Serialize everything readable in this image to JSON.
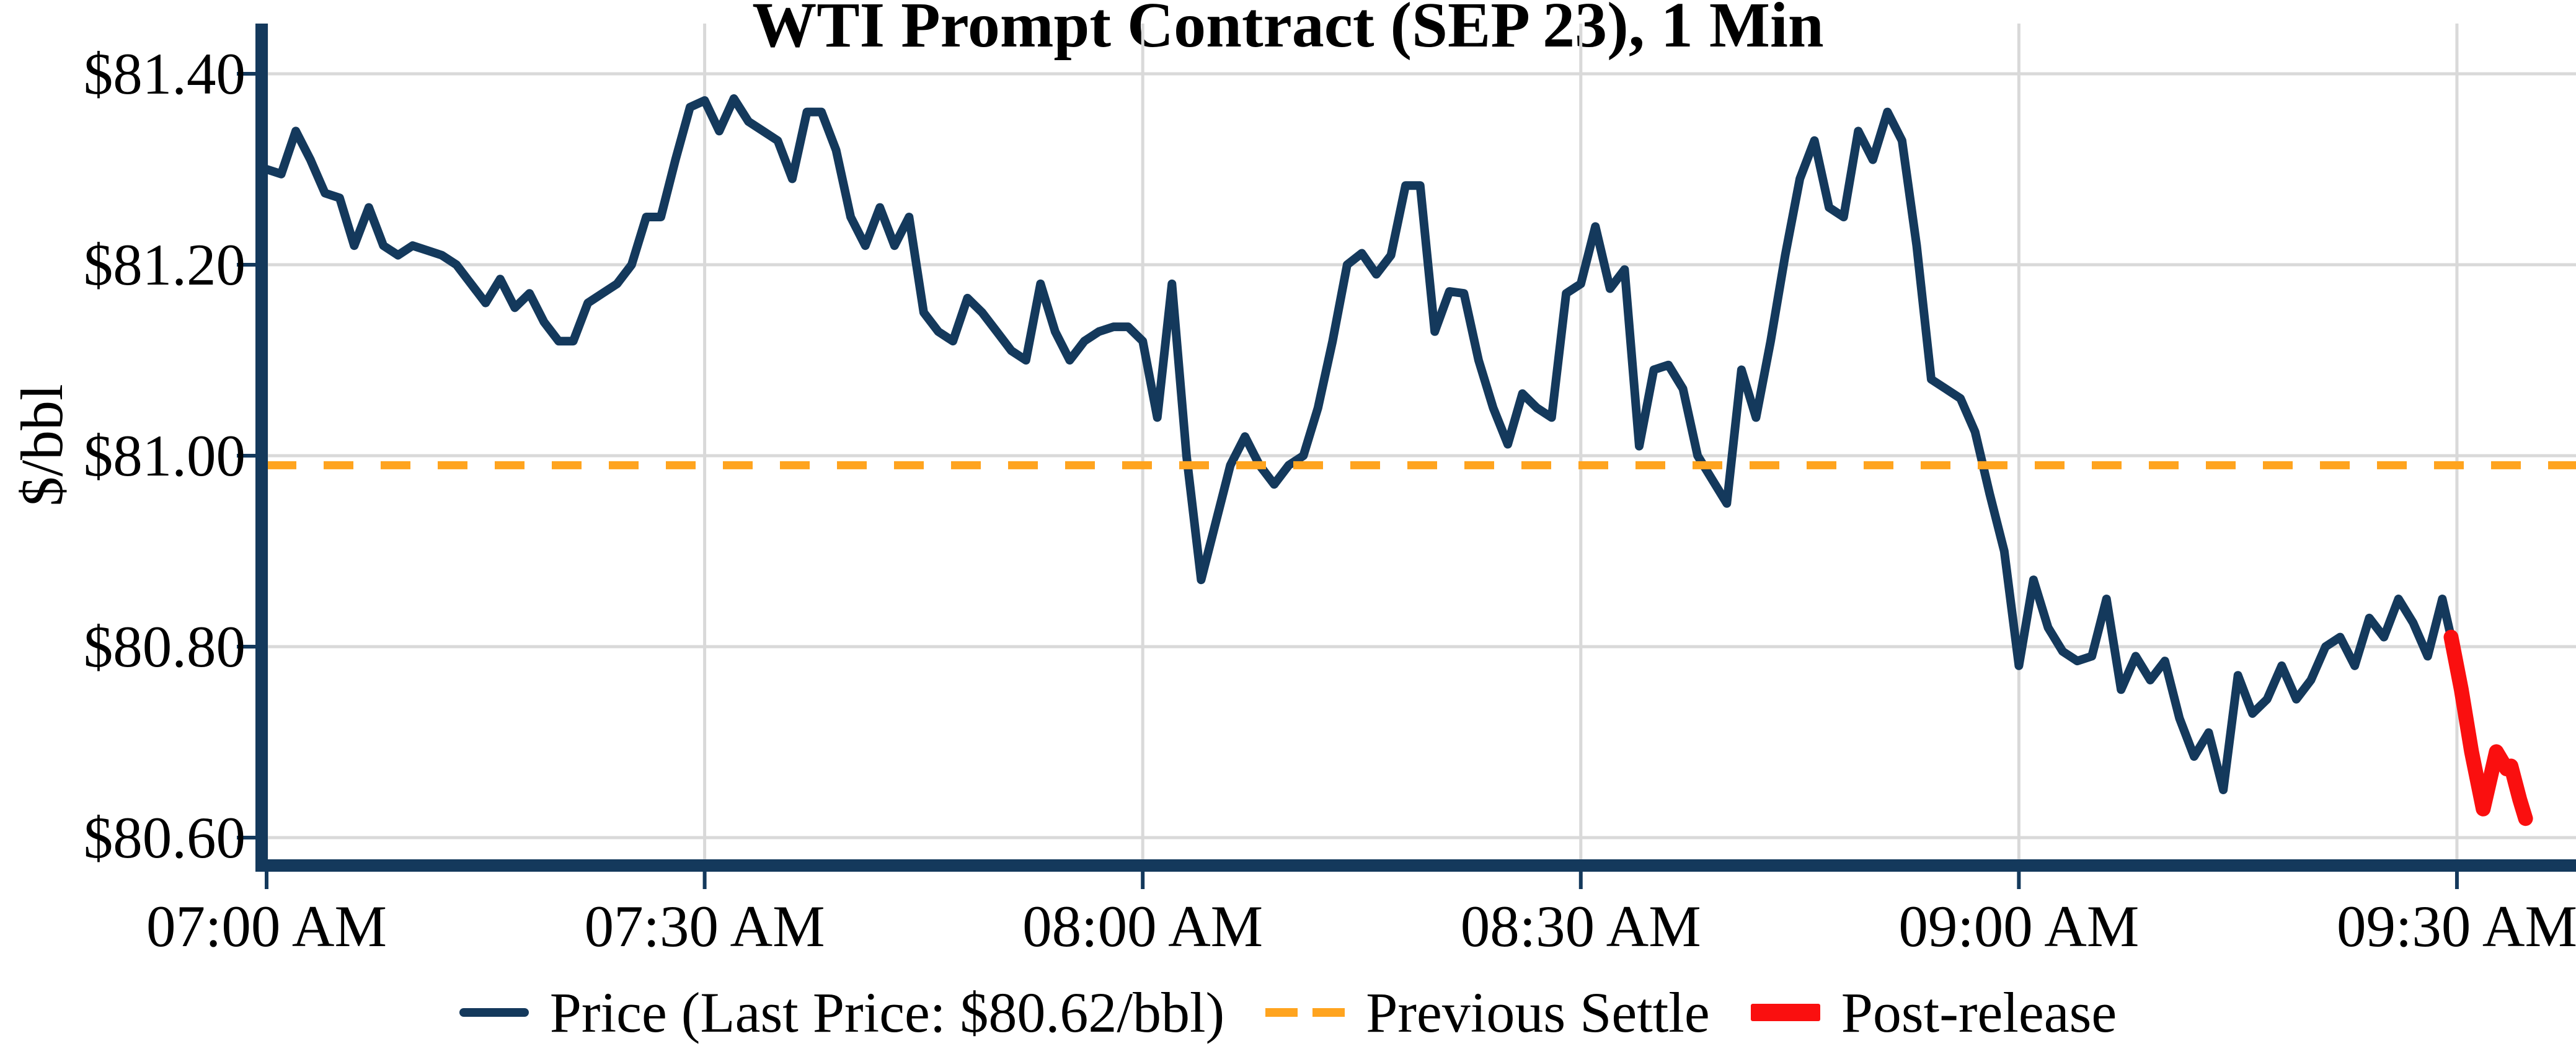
{
  "chart": {
    "title": "WTI Prompt Contract (SEP 23), 1 Min"
  },
  "y_axis": {
    "label": "$/bbl",
    "ticks": [
      {
        "label": "$81.40",
        "value": 81.4
      },
      {
        "label": "$81.20",
        "value": 81.2
      },
      {
        "label": "$81.00",
        "value": 81.0
      },
      {
        "label": "$80.80",
        "value": 80.8
      },
      {
        "label": "$80.60",
        "value": 80.6
      }
    ]
  },
  "x_axis": {
    "ticks": [
      {
        "label": "07:00 AM",
        "minute": 0
      },
      {
        "label": "07:30 AM",
        "minute": 30
      },
      {
        "label": "08:00 AM",
        "minute": 60
      },
      {
        "label": "08:30 AM",
        "minute": 90
      },
      {
        "label": "09:00 AM",
        "minute": 120
      },
      {
        "label": "09:30 AM",
        "minute": 150
      }
    ]
  },
  "legend": {
    "price": "Price (Last Price: $80.62/bbl)",
    "settle": "Previous Settle",
    "post": "Post-release"
  },
  "colors": {
    "price": "#14395C",
    "settle": "#FFA41F",
    "post": "#FA0F0F",
    "grid": "#D9D9D9",
    "axis": "#14395C",
    "text": "#000000"
  },
  "chart_data": {
    "type": "line",
    "title": "WTI Prompt Contract (SEP 23), 1 Min",
    "xlabel": "",
    "ylabel": "$/bbl",
    "x_unit": "minutes after 07:00 AM",
    "xlim": [
      0,
      158
    ],
    "ylim": [
      80.57,
      81.455
    ],
    "grid": true,
    "legend_position": "bottom-center",
    "previous_settle": 80.99,
    "last_price": 80.62,
    "series": [
      {
        "name": "Price",
        "color_key": "price",
        "width": 14,
        "points": [
          [
            0,
            81.3
          ],
          [
            1,
            81.295
          ],
          [
            2,
            81.34
          ],
          [
            3,
            81.31
          ],
          [
            4,
            81.275
          ],
          [
            5,
            81.27
          ],
          [
            6,
            81.22
          ],
          [
            7,
            81.26
          ],
          [
            8,
            81.22
          ],
          [
            9,
            81.21
          ],
          [
            10,
            81.22
          ],
          [
            11,
            81.215
          ],
          [
            12,
            81.21
          ],
          [
            13,
            81.2
          ],
          [
            14,
            81.18
          ],
          [
            15,
            81.16
          ],
          [
            16,
            81.185
          ],
          [
            17,
            81.155
          ],
          [
            18,
            81.17
          ],
          [
            19,
            81.14
          ],
          [
            20,
            81.12
          ],
          [
            21,
            81.12
          ],
          [
            22,
            81.16
          ],
          [
            23,
            81.17
          ],
          [
            24,
            81.18
          ],
          [
            25,
            81.2
          ],
          [
            26,
            81.25
          ],
          [
            27,
            81.25
          ],
          [
            28,
            81.31
          ],
          [
            29,
            81.365
          ],
          [
            30,
            81.372
          ],
          [
            31,
            81.34
          ],
          [
            32,
            81.374
          ],
          [
            33,
            81.35
          ],
          [
            34,
            81.34
          ],
          [
            35,
            81.33
          ],
          [
            36,
            81.29
          ],
          [
            37,
            81.36
          ],
          [
            38,
            81.36
          ],
          [
            39,
            81.32
          ],
          [
            40,
            81.25
          ],
          [
            41,
            81.22
          ],
          [
            42,
            81.26
          ],
          [
            43,
            81.22
          ],
          [
            44,
            81.25
          ],
          [
            45,
            81.15
          ],
          [
            46,
            81.13
          ],
          [
            47,
            81.12
          ],
          [
            48,
            81.165
          ],
          [
            49,
            81.15
          ],
          [
            50,
            81.13
          ],
          [
            51,
            81.11
          ],
          [
            52,
            81.1
          ],
          [
            53,
            81.18
          ],
          [
            54,
            81.13
          ],
          [
            55,
            81.1
          ],
          [
            56,
            81.12
          ],
          [
            57,
            81.13
          ],
          [
            58,
            81.135
          ],
          [
            59,
            81.135
          ],
          [
            60,
            81.12
          ],
          [
            61,
            81.04
          ],
          [
            62,
            81.18
          ],
          [
            63,
            81.0
          ],
          [
            64,
            80.87
          ],
          [
            65,
            80.93
          ],
          [
            66,
            80.99
          ],
          [
            67,
            81.02
          ],
          [
            68,
            80.99
          ],
          [
            69,
            80.97
          ],
          [
            70,
            80.99
          ],
          [
            71,
            81.0
          ],
          [
            72,
            81.05
          ],
          [
            73,
            81.12
          ],
          [
            74,
            81.2
          ],
          [
            75,
            81.212
          ],
          [
            76,
            81.19
          ],
          [
            77,
            81.21
          ],
          [
            78,
            81.283
          ],
          [
            79,
            81.283
          ],
          [
            80,
            81.13
          ],
          [
            81,
            81.172
          ],
          [
            82,
            81.17
          ],
          [
            83,
            81.1
          ],
          [
            84,
            81.05
          ],
          [
            85,
            81.012
          ],
          [
            86,
            81.065
          ],
          [
            87,
            81.05
          ],
          [
            88,
            81.04
          ],
          [
            89,
            81.17
          ],
          [
            90,
            81.18
          ],
          [
            91,
            81.24
          ],
          [
            92,
            81.175
          ],
          [
            93,
            81.195
          ],
          [
            94,
            81.01
          ],
          [
            95,
            81.09
          ],
          [
            96,
            81.095
          ],
          [
            97,
            81.07
          ],
          [
            98,
            81.0
          ],
          [
            99,
            80.975
          ],
          [
            100,
            80.95
          ],
          [
            101,
            81.09
          ],
          [
            102,
            81.04
          ],
          [
            103,
            81.12
          ],
          [
            104,
            81.21
          ],
          [
            105,
            81.29
          ],
          [
            106,
            81.33
          ],
          [
            107,
            81.26
          ],
          [
            108,
            81.25
          ],
          [
            109,
            81.34
          ],
          [
            110,
            81.31
          ],
          [
            111,
            81.36
          ],
          [
            112,
            81.33
          ],
          [
            113,
            81.22
          ],
          [
            114,
            81.08
          ],
          [
            115,
            81.07
          ],
          [
            116,
            81.06
          ],
          [
            117,
            81.025
          ],
          [
            118,
            80.96
          ],
          [
            119,
            80.9
          ],
          [
            120,
            80.78
          ],
          [
            121,
            80.87
          ],
          [
            122,
            80.82
          ],
          [
            123,
            80.795
          ],
          [
            124,
            80.785
          ],
          [
            125,
            80.79
          ],
          [
            126,
            80.85
          ],
          [
            127,
            80.755
          ],
          [
            128,
            80.79
          ],
          [
            129,
            80.765
          ],
          [
            130,
            80.785
          ],
          [
            131,
            80.725
          ],
          [
            132,
            80.685
          ],
          [
            133,
            80.71
          ],
          [
            134,
            80.65
          ],
          [
            135,
            80.77
          ],
          [
            136,
            80.73
          ],
          [
            137,
            80.745
          ],
          [
            138,
            80.78
          ],
          [
            139,
            80.745
          ],
          [
            140,
            80.765
          ],
          [
            141,
            80.8
          ],
          [
            142,
            80.81
          ],
          [
            143,
            80.78
          ],
          [
            144,
            80.83
          ],
          [
            145,
            80.81
          ],
          [
            146,
            80.85
          ],
          [
            147,
            80.825
          ],
          [
            148,
            80.79
          ],
          [
            149,
            80.85
          ],
          [
            149.6,
            80.81
          ]
        ]
      },
      {
        "name": "Post-release",
        "color_key": "post",
        "width": 24,
        "points": [
          [
            149.6,
            80.81
          ],
          [
            150.3,
            80.755
          ],
          [
            151,
            80.69
          ],
          [
            151.8,
            80.63
          ],
          [
            152.7,
            80.69
          ],
          [
            153.4,
            80.672
          ],
          [
            153.7,
            80.675
          ],
          [
            154.3,
            80.64
          ],
          [
            154.7,
            80.62
          ]
        ]
      },
      {
        "name": "Previous Settle",
        "color_key": "settle",
        "style": "dashed",
        "width": 13,
        "value": 80.99
      }
    ]
  }
}
